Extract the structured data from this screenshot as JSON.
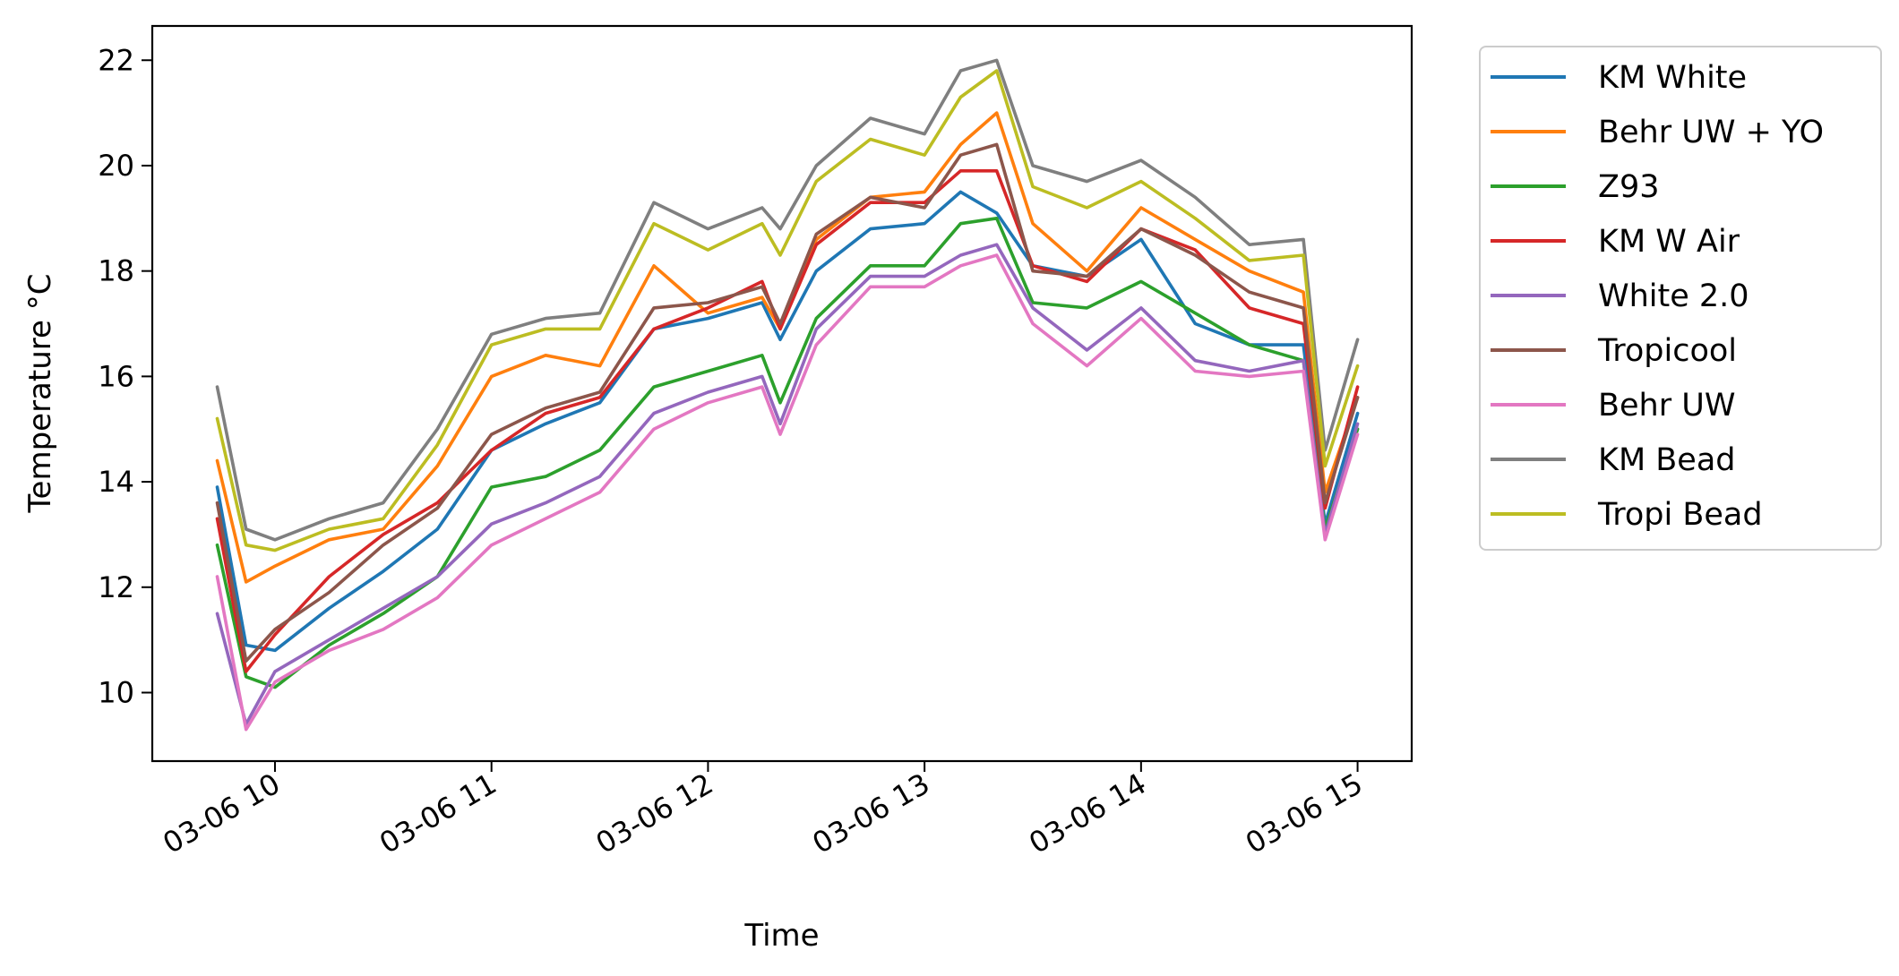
{
  "chart_data": {
    "type": "line",
    "title": "",
    "xlabel": "Time",
    "ylabel": "Temperature °C",
    "xlim": [
      "03-06 09:26",
      "03-06 15:15"
    ],
    "ylim": [
      8.7,
      22.65
    ],
    "xticks": [
      {
        "time": "03-06 10:00",
        "label": "03-06 10"
      },
      {
        "time": "03-06 11:00",
        "label": "03-06 11"
      },
      {
        "time": "03-06 12:00",
        "label": "03-06 12"
      },
      {
        "time": "03-06 13:00",
        "label": "03-06 13"
      },
      {
        "time": "03-06 14:00",
        "label": "03-06 14"
      },
      {
        "time": "03-06 15:00",
        "label": "03-06 15"
      }
    ],
    "yticks": [
      10,
      12,
      14,
      16,
      18,
      20,
      22
    ],
    "grid": false,
    "legend_position": "outside-right-top",
    "x": [
      "03-06 09:44",
      "03-06 09:52",
      "03-06 10:00",
      "03-06 10:15",
      "03-06 10:30",
      "03-06 10:45",
      "03-06 11:00",
      "03-06 11:15",
      "03-06 11:30",
      "03-06 11:45",
      "03-06 12:00",
      "03-06 12:15",
      "03-06 12:20",
      "03-06 12:30",
      "03-06 12:45",
      "03-06 13:00",
      "03-06 13:10",
      "03-06 13:20",
      "03-06 13:30",
      "03-06 13:45",
      "03-06 14:00",
      "03-06 14:15",
      "03-06 14:30",
      "03-06 14:45",
      "03-06 14:51",
      "03-06 15:00"
    ],
    "series": [
      {
        "name": "KM White",
        "color": "#1f77b4",
        "values": [
          13.9,
          10.9,
          10.8,
          11.6,
          12.3,
          13.1,
          14.6,
          15.1,
          15.5,
          16.9,
          17.1,
          17.4,
          16.7,
          18.0,
          18.8,
          18.9,
          19.5,
          19.1,
          18.1,
          17.9,
          18.6,
          17.0,
          16.6,
          16.6,
          13.2,
          15.3
        ]
      },
      {
        "name": "Behr UW + YO",
        "color": "#ff7f0e",
        "values": [
          14.4,
          12.1,
          12.4,
          12.9,
          13.1,
          14.3,
          16.0,
          16.4,
          16.2,
          18.1,
          17.2,
          17.5,
          16.9,
          18.6,
          19.4,
          19.5,
          20.4,
          21.0,
          18.9,
          18.0,
          19.2,
          18.6,
          18.0,
          17.6,
          13.8,
          15.6
        ]
      },
      {
        "name": "Z93",
        "color": "#2ca02c",
        "values": [
          12.8,
          10.3,
          10.1,
          10.9,
          11.5,
          12.2,
          13.9,
          14.1,
          14.6,
          15.8,
          16.1,
          16.4,
          15.5,
          17.1,
          18.1,
          18.1,
          18.9,
          19.0,
          17.4,
          17.3,
          17.8,
          17.2,
          16.6,
          16.3,
          13.1,
          15.0
        ]
      },
      {
        "name": "KM W Air",
        "color": "#d62728",
        "values": [
          13.3,
          10.4,
          11.1,
          12.2,
          13.0,
          13.6,
          14.6,
          15.3,
          15.6,
          16.9,
          17.3,
          17.8,
          16.9,
          18.5,
          19.3,
          19.3,
          19.9,
          19.9,
          18.1,
          17.8,
          18.8,
          18.4,
          17.3,
          17.0,
          13.5,
          15.8
        ]
      },
      {
        "name": "White 2.0",
        "color": "#9467bd",
        "values": [
          11.5,
          9.4,
          10.4,
          11.0,
          11.6,
          12.2,
          13.2,
          13.6,
          14.1,
          15.3,
          15.7,
          16.0,
          15.1,
          16.9,
          17.9,
          17.9,
          18.3,
          18.5,
          17.3,
          16.5,
          17.3,
          16.3,
          16.1,
          16.3,
          13.0,
          15.1
        ]
      },
      {
        "name": "Tropicool",
        "color": "#8c564b",
        "values": [
          13.6,
          10.6,
          11.2,
          11.9,
          12.8,
          13.5,
          14.9,
          15.4,
          15.7,
          17.3,
          17.4,
          17.7,
          17.0,
          18.7,
          19.4,
          19.2,
          20.2,
          20.4,
          18.0,
          17.9,
          18.8,
          18.3,
          17.6,
          17.3,
          13.6,
          15.6
        ]
      },
      {
        "name": "Behr UW",
        "color": "#e377c2",
        "values": [
          12.2,
          9.3,
          10.2,
          10.8,
          11.2,
          11.8,
          12.8,
          13.3,
          13.8,
          15.0,
          15.5,
          15.8,
          14.9,
          16.6,
          17.7,
          17.7,
          18.1,
          18.3,
          17.0,
          16.2,
          17.1,
          16.1,
          16.0,
          16.1,
          12.9,
          14.9
        ]
      },
      {
        "name": "KM Bead",
        "color": "#7f7f7f",
        "values": [
          15.8,
          13.1,
          12.9,
          13.3,
          13.6,
          15.0,
          16.8,
          17.1,
          17.2,
          19.3,
          18.8,
          19.2,
          18.8,
          20.0,
          20.9,
          20.6,
          21.8,
          22.0,
          20.0,
          19.7,
          20.1,
          19.4,
          18.5,
          18.6,
          14.6,
          16.7
        ]
      },
      {
        "name": "Tropi Bead",
        "color": "#bcbd22",
        "values": [
          15.2,
          12.8,
          12.7,
          13.1,
          13.3,
          14.7,
          16.6,
          16.9,
          16.9,
          18.9,
          18.4,
          18.9,
          18.3,
          19.7,
          20.5,
          20.2,
          21.3,
          21.8,
          19.6,
          19.2,
          19.7,
          19.0,
          18.2,
          18.3,
          14.3,
          16.2
        ]
      }
    ]
  }
}
